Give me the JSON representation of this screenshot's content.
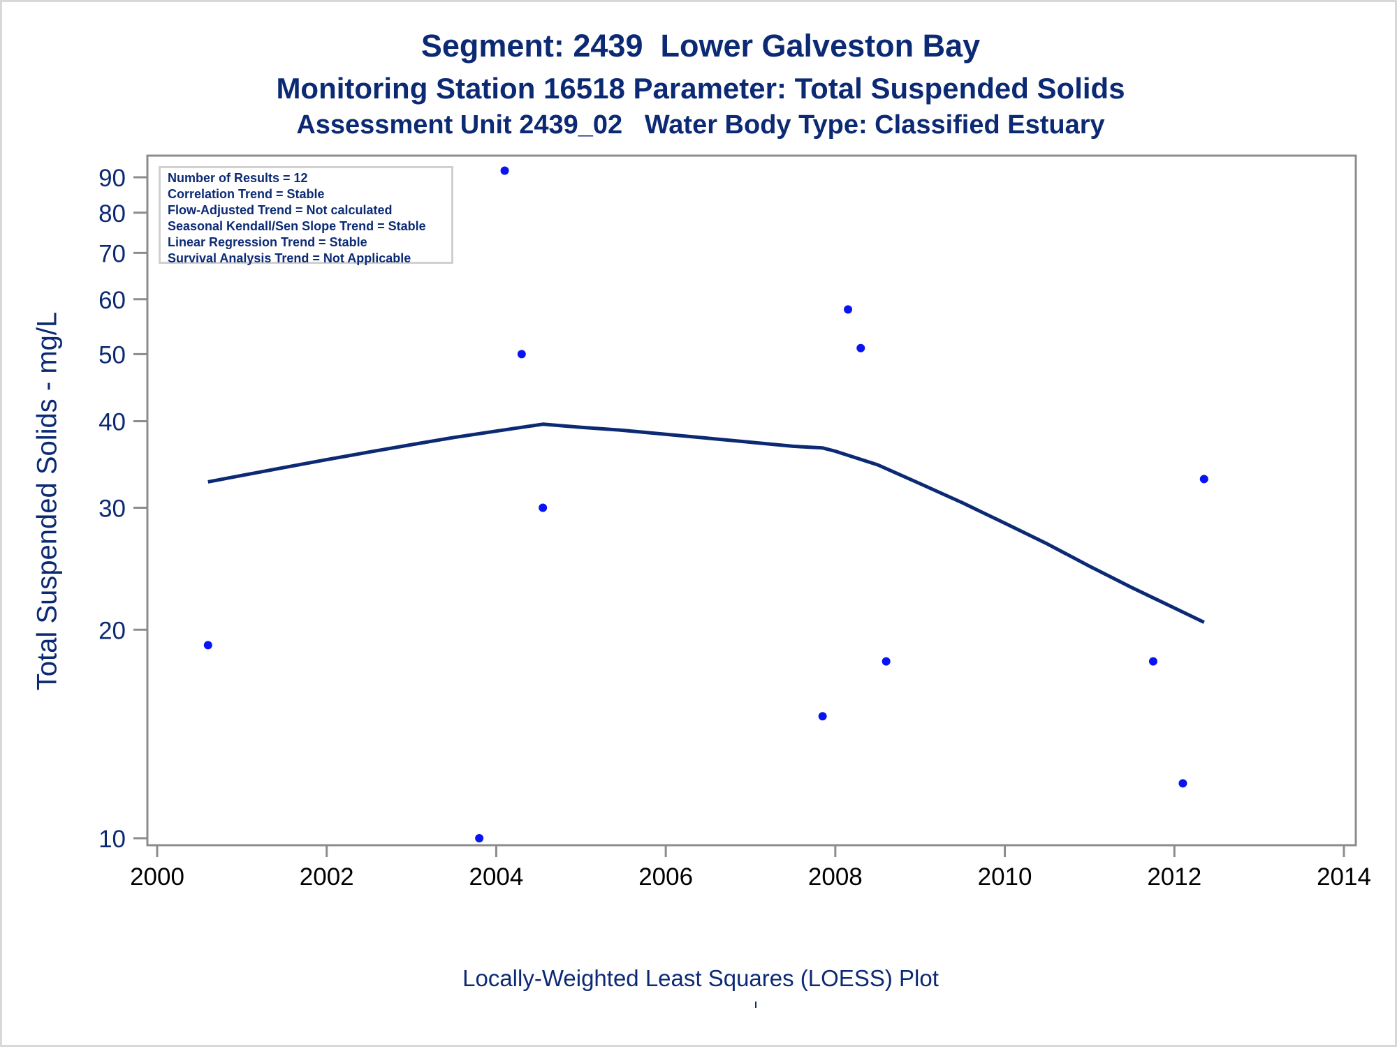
{
  "titles": {
    "line1": "Segment: 2439  Lower Galveston Bay",
    "line2": "Monitoring Station 16518 Parameter: Total Suspended Solids",
    "line3": "Assessment Unit 2439_02   Water Body Type: Classified Estuary"
  },
  "stats_box": {
    "lines": [
      "Number of Results = 12",
      "Correlation Trend = Stable",
      "Flow-Adjusted Trend = Not calculated",
      "Seasonal Kendall/Sen Slope Trend = Stable",
      "Linear Regression Trend = Stable",
      "Survival Analysis Trend = Not Applicable"
    ]
  },
  "colors": {
    "text": "#0c2a74",
    "points": "#0a14f0",
    "loess_line": "#0c2a74",
    "axis": "#8c8c8c"
  },
  "chart_data": {
    "type": "scatter",
    "title": "Segment: 2439  Lower Galveston Bay",
    "xlabel": "Locally-Weighted Least Squares (LOESS) Plot",
    "ylabel": "Total Suspended Solids - mg/L",
    "y_scale": "log",
    "grid": false,
    "xlim": [
      2000,
      2014
    ],
    "ylim": [
      9.6,
      98
    ],
    "x_ticks": [
      2000,
      2002,
      2004,
      2006,
      2008,
      2010,
      2012,
      2014
    ],
    "y_ticks": [
      10,
      20,
      30,
      40,
      50,
      60,
      70,
      80,
      90
    ],
    "series": [
      {
        "type": "scatter",
        "points": [
          [
            2000.6,
            19
          ],
          [
            2003.8,
            10
          ],
          [
            2004.1,
            92
          ],
          [
            2004.3,
            50
          ],
          [
            2004.55,
            30
          ],
          [
            2007.85,
            15
          ],
          [
            2008.15,
            58
          ],
          [
            2008.3,
            51
          ],
          [
            2008.6,
            18
          ],
          [
            2011.75,
            18
          ],
          [
            2012.1,
            12
          ],
          [
            2012.35,
            33
          ]
        ]
      },
      {
        "type": "line",
        "points": [
          [
            2000.6,
            32.7
          ],
          [
            2001.0,
            33.4
          ],
          [
            2001.5,
            34.3
          ],
          [
            2002.0,
            35.2
          ],
          [
            2002.5,
            36.1
          ],
          [
            2003.0,
            37.0
          ],
          [
            2003.5,
            37.9
          ],
          [
            2004.0,
            38.7
          ],
          [
            2004.55,
            39.6
          ],
          [
            2005.0,
            39.2
          ],
          [
            2005.5,
            38.8
          ],
          [
            2006.0,
            38.3
          ],
          [
            2006.5,
            37.8
          ],
          [
            2007.0,
            37.3
          ],
          [
            2007.5,
            36.8
          ],
          [
            2007.85,
            36.6
          ],
          [
            2008.0,
            36.2
          ],
          [
            2008.5,
            34.6
          ],
          [
            2009.0,
            32.5
          ],
          [
            2009.5,
            30.5
          ],
          [
            2010.0,
            28.5
          ],
          [
            2010.5,
            26.6
          ],
          [
            2011.0,
            24.7
          ],
          [
            2011.5,
            23.0
          ],
          [
            2012.0,
            21.5
          ],
          [
            2012.35,
            20.5
          ]
        ]
      }
    ]
  }
}
